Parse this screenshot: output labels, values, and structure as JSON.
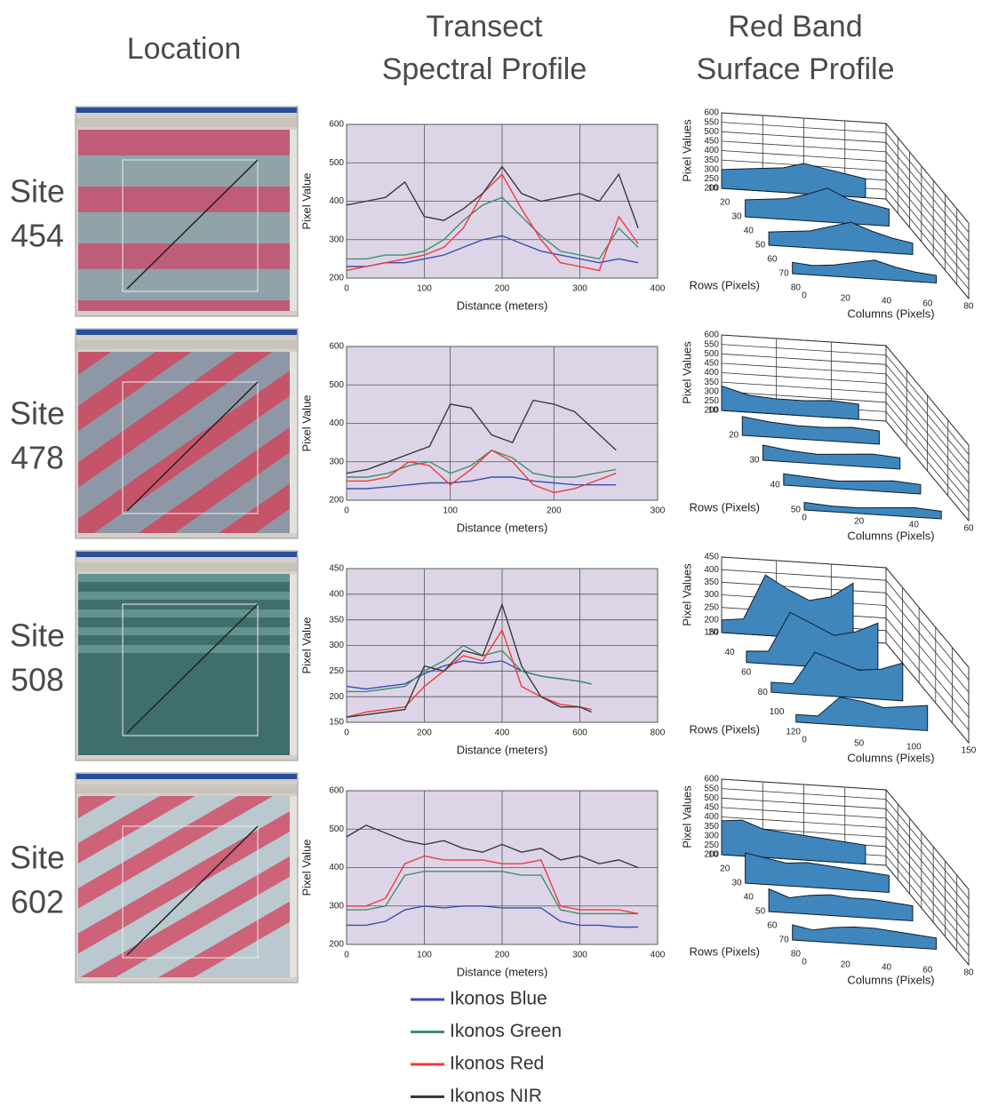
{
  "headers": {
    "location": "Location",
    "spectral": [
      "Transect",
      "Spectral Profile"
    ],
    "surface": [
      "Red Band",
      "Surface Profile"
    ]
  },
  "sites": [
    [
      "Site",
      "454"
    ],
    [
      "Site",
      "478"
    ],
    [
      "Site",
      "508"
    ],
    [
      "Site",
      "602"
    ]
  ],
  "chart_data": [
    {
      "type": "line",
      "xlabel": "Distance (meters)",
      "ylabel": "Pixel Value",
      "xlim": [
        0,
        400
      ],
      "xticks": [
        0,
        100,
        200,
        300,
        400
      ],
      "ylim": [
        200,
        600
      ],
      "yticks": [
        200,
        300,
        400,
        500,
        600
      ],
      "grid": true,
      "x": [
        0,
        25,
        50,
        75,
        100,
        125,
        150,
        175,
        200,
        225,
        250,
        275,
        300,
        325,
        350,
        375
      ],
      "series": [
        {
          "name": "Ikonos Blue",
          "color": "#3a4fb0",
          "values": [
            230,
            230,
            240,
            240,
            250,
            260,
            280,
            300,
            310,
            290,
            270,
            260,
            250,
            240,
            250,
            240
          ]
        },
        {
          "name": "Ikonos Green",
          "color": "#3f8f6a",
          "values": [
            250,
            250,
            260,
            260,
            270,
            300,
            350,
            390,
            410,
            360,
            310,
            270,
            260,
            250,
            330,
            280
          ]
        },
        {
          "name": "Ikonos Red",
          "color": "#f0383e",
          "values": [
            220,
            230,
            240,
            250,
            260,
            280,
            330,
            420,
            470,
            380,
            300,
            240,
            230,
            220,
            360,
            290
          ]
        },
        {
          "name": "Ikonos NIR",
          "color": "#3a3a3a",
          "values": [
            390,
            400,
            410,
            450,
            360,
            350,
            380,
            420,
            490,
            420,
            400,
            410,
            420,
            400,
            470,
            330
          ]
        }
      ]
    },
    {
      "type": "line",
      "xlabel": "Distance (meters)",
      "ylabel": "Pixel Value",
      "xlim": [
        0,
        300
      ],
      "xticks": [
        0,
        100,
        200,
        300
      ],
      "ylim": [
        200,
        600
      ],
      "yticks": [
        200,
        300,
        400,
        500,
        600
      ],
      "grid": true,
      "x": [
        0,
        20,
        40,
        60,
        80,
        100,
        120,
        140,
        160,
        180,
        200,
        220,
        240,
        260
      ],
      "series": [
        {
          "name": "Ikonos Blue",
          "color": "#3a4fb0",
          "values": [
            230,
            230,
            235,
            240,
            245,
            245,
            250,
            260,
            260,
            250,
            245,
            240,
            240,
            240
          ]
        },
        {
          "name": "Ikonos Green",
          "color": "#3f8f6a",
          "values": [
            260,
            260,
            270,
            290,
            300,
            270,
            290,
            330,
            310,
            270,
            260,
            260,
            270,
            280
          ]
        },
        {
          "name": "Ikonos Red",
          "color": "#f0383e",
          "values": [
            250,
            250,
            260,
            300,
            290,
            240,
            280,
            330,
            300,
            240,
            220,
            230,
            250,
            270
          ]
        },
        {
          "name": "Ikonos NIR",
          "color": "#3a3a3a",
          "values": [
            270,
            280,
            300,
            320,
            340,
            450,
            440,
            370,
            350,
            460,
            450,
            430,
            380,
            330
          ]
        }
      ]
    },
    {
      "type": "line",
      "xlabel": "Distance (meters)",
      "ylabel": "Pixel Value",
      "xlim": [
        0,
        800
      ],
      "xticks": [
        0,
        200,
        400,
        600,
        800
      ],
      "ylim": [
        150,
        450
      ],
      "yticks": [
        150,
        200,
        250,
        300,
        350,
        400,
        450
      ],
      "grid": true,
      "x": [
        0,
        50,
        100,
        150,
        200,
        250,
        300,
        350,
        400,
        450,
        500,
        550,
        600,
        630
      ],
      "series": [
        {
          "name": "Ikonos Blue",
          "color": "#3a4fb0",
          "values": [
            220,
            215,
            220,
            225,
            245,
            260,
            270,
            265,
            270,
            250,
            240,
            235,
            230,
            225
          ]
        },
        {
          "name": "Ikonos Green",
          "color": "#3f8f6a",
          "values": [
            210,
            210,
            215,
            220,
            250,
            270,
            300,
            280,
            290,
            250,
            240,
            235,
            230,
            225
          ]
        },
        {
          "name": "Ikonos Red",
          "color": "#f0383e",
          "values": [
            160,
            170,
            175,
            180,
            220,
            250,
            280,
            270,
            330,
            220,
            200,
            185,
            180,
            175
          ]
        },
        {
          "name": "Ikonos NIR",
          "color": "#3a3a3a",
          "values": [
            160,
            165,
            170,
            175,
            260,
            250,
            290,
            280,
            380,
            260,
            200,
            180,
            180,
            170
          ]
        }
      ]
    },
    {
      "type": "line",
      "xlabel": "Distance (meters)",
      "ylabel": "Pixel Value",
      "xlim": [
        0,
        400
      ],
      "xticks": [
        0,
        100,
        200,
        300,
        400
      ],
      "ylim": [
        200,
        600
      ],
      "yticks": [
        200,
        300,
        400,
        500,
        600
      ],
      "grid": true,
      "x": [
        0,
        25,
        50,
        75,
        100,
        125,
        150,
        175,
        200,
        225,
        250,
        275,
        300,
        325,
        350,
        375
      ],
      "series": [
        {
          "name": "Ikonos Blue",
          "color": "#3a4fb0",
          "values": [
            250,
            250,
            260,
            290,
            300,
            295,
            300,
            300,
            295,
            295,
            295,
            260,
            250,
            250,
            245,
            245
          ]
        },
        {
          "name": "Ikonos Green",
          "color": "#3f8f6a",
          "values": [
            290,
            290,
            300,
            380,
            390,
            390,
            390,
            390,
            390,
            380,
            380,
            290,
            280,
            280,
            280,
            280
          ]
        },
        {
          "name": "Ikonos Red",
          "color": "#f0383e",
          "values": [
            300,
            300,
            320,
            410,
            430,
            420,
            420,
            420,
            410,
            410,
            420,
            300,
            290,
            290,
            290,
            280
          ]
        },
        {
          "name": "Ikonos NIR",
          "color": "#3a3a3a",
          "values": [
            480,
            510,
            490,
            470,
            460,
            470,
            450,
            440,
            460,
            440,
            450,
            420,
            430,
            410,
            420,
            400
          ]
        }
      ]
    },
    {
      "type": "surface",
      "zlabel": "Pixel Values",
      "rowlabel": "Rows (Pixels)",
      "collabel": "Columns (Pixels)",
      "zlim": [
        200,
        600
      ],
      "zticks": [
        200,
        250,
        300,
        350,
        400,
        450,
        500,
        550,
        600
      ],
      "rowlim": [
        10,
        80
      ],
      "rowticks": [
        10,
        20,
        30,
        40,
        50,
        60,
        70,
        80
      ],
      "collim": [
        0,
        80
      ],
      "colticks": [
        0,
        20,
        40,
        60,
        80
      ],
      "rows": [
        10,
        30,
        50,
        70
      ],
      "columns": [
        0,
        10,
        20,
        30,
        40,
        50,
        60,
        70
      ],
      "values": [
        [
          300,
          310,
          320,
          330,
          360,
          340,
          320,
          300
        ],
        [
          290,
          300,
          310,
          340,
          380,
          330,
          310,
          290
        ],
        [
          270,
          280,
          290,
          320,
          350,
          310,
          280,
          260
        ],
        [
          260,
          250,
          260,
          280,
          300,
          270,
          250,
          240
        ]
      ]
    },
    {
      "type": "surface",
      "zlabel": "Pixel Values",
      "rowlabel": "Rows (Pixels)",
      "collabel": "Columns (Pixels)",
      "zlim": [
        200,
        600
      ],
      "zticks": [
        200,
        250,
        300,
        350,
        400,
        450,
        500,
        550,
        600
      ],
      "rowlim": [
        10,
        50
      ],
      "rowticks": [
        10,
        20,
        30,
        40,
        50
      ],
      "collim": [
        0,
        60
      ],
      "colticks": [
        0,
        20,
        40,
        60
      ],
      "rows": [
        10,
        20,
        30,
        40,
        50
      ],
      "columns": [
        0,
        10,
        20,
        30,
        40,
        50
      ],
      "values": [
        [
          330,
          290,
          280,
          280,
          290,
          280
        ],
        [
          300,
          280,
          270,
          270,
          280,
          270
        ],
        [
          280,
          260,
          250,
          260,
          270,
          260
        ],
        [
          260,
          250,
          240,
          250,
          260,
          250
        ],
        [
          240,
          230,
          230,
          240,
          250,
          240
        ]
      ]
    },
    {
      "type": "surface",
      "zlabel": "Pixel Values",
      "rowlabel": "Rows (Pixels)",
      "collabel": "Columns (Pixels)",
      "zlim": [
        150,
        450
      ],
      "zticks": [
        150,
        200,
        250,
        300,
        350,
        400,
        450
      ],
      "rowlim": [
        20,
        120
      ],
      "rowticks": [
        20,
        40,
        60,
        80,
        100,
        120
      ],
      "collim": [
        0,
        150
      ],
      "colticks": [
        0,
        50,
        100,
        150
      ],
      "rows": [
        20,
        50,
        80,
        110
      ],
      "columns": [
        0,
        20,
        40,
        60,
        80,
        100,
        120
      ],
      "values": [
        [
          200,
          210,
          390,
          340,
          300,
          320,
          380
        ],
        [
          195,
          200,
          360,
          320,
          280,
          300,
          340
        ],
        [
          190,
          190,
          320,
          290,
          260,
          270,
          300
        ],
        [
          180,
          180,
          260,
          250,
          230,
          240,
          250
        ]
      ]
    },
    {
      "type": "surface",
      "zlabel": "Pixel Values",
      "rowlabel": "Rows (Pixels)",
      "collabel": "Columns (Pixels)",
      "zlim": [
        200,
        600
      ],
      "zticks": [
        200,
        250,
        300,
        350,
        400,
        450,
        500,
        550,
        600
      ],
      "rowlim": [
        10,
        80
      ],
      "rowticks": [
        10,
        20,
        30,
        40,
        50,
        60,
        70,
        80
      ],
      "collim": [
        0,
        80
      ],
      "colticks": [
        0,
        20,
        40,
        60,
        80
      ],
      "rows": [
        10,
        30,
        50,
        70
      ],
      "columns": [
        0,
        10,
        20,
        30,
        40,
        50,
        60,
        70
      ],
      "values": [
        [
          380,
          390,
          350,
          340,
          330,
          320,
          310,
          300
        ],
        [
          360,
          340,
          320,
          330,
          320,
          310,
          300,
          290
        ],
        [
          320,
          280,
          300,
          310,
          300,
          300,
          290,
          280
        ],
        [
          280,
          260,
          280,
          290,
          290,
          280,
          270,
          260
        ]
      ]
    }
  ]
}
